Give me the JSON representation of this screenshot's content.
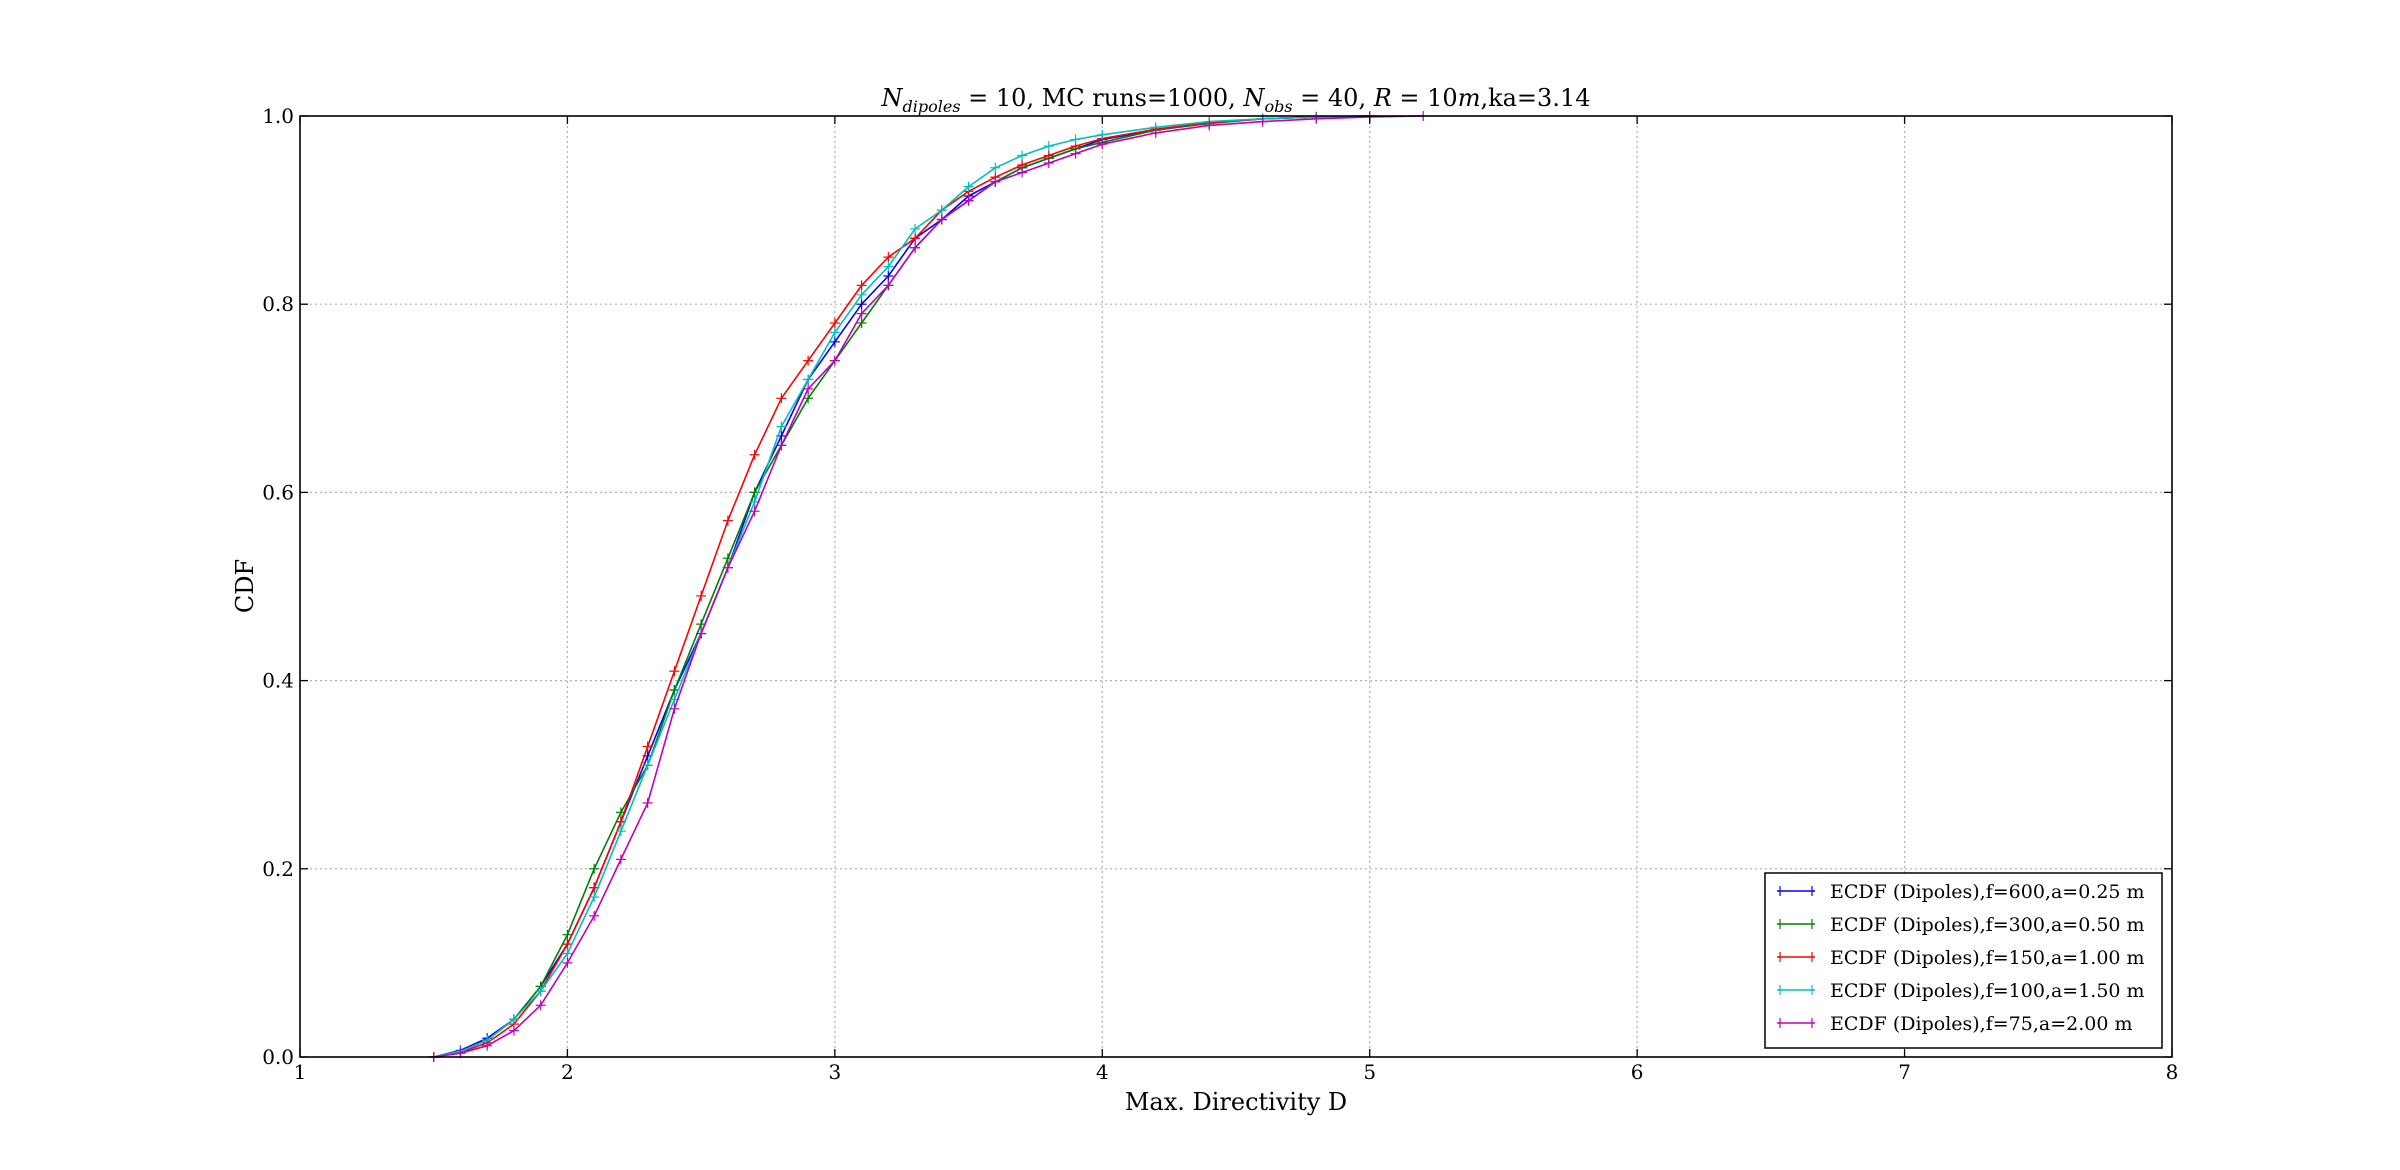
{
  "chart_data": {
    "type": "line",
    "title": {
      "sym": "N",
      "sub": "dipoles",
      "p1": " = 10, MC runs=1000, ",
      "sym2": "N",
      "sub2": "obs",
      "p2": " = 40, ",
      "sym3": "R",
      "p3": " = 10",
      "sym4": "m",
      "p4": ",ka=3.14"
    },
    "xlabel": "Max. Directivity D",
    "ylabel": "CDF",
    "xlim": [
      1,
      8
    ],
    "ylim": [
      0,
      1
    ],
    "xticks": [
      "1",
      "2",
      "3",
      "4",
      "5",
      "6",
      "7",
      "8"
    ],
    "yticks": [
      "0.0",
      "0.2",
      "0.4",
      "0.6",
      "0.8",
      "1.0"
    ],
    "grid": true,
    "legend_position": "lower-right",
    "series": [
      {
        "name": "ECDF (Dipoles),f=600,a=0.25 m",
        "color": "#0000ff",
        "x": [
          1.5,
          1.6,
          1.7,
          1.8,
          1.9,
          2.0,
          2.1,
          2.2,
          2.3,
          2.4,
          2.5,
          2.6,
          2.7,
          2.8,
          2.9,
          3.0,
          3.1,
          3.2,
          3.3,
          3.4,
          3.5,
          3.6,
          3.7,
          3.8,
          3.9,
          4.0,
          4.2,
          4.4,
          4.6,
          4.8,
          5.0
        ],
        "y": [
          0.0,
          0.007,
          0.02,
          0.04,
          0.075,
          0.12,
          0.18,
          0.25,
          0.32,
          0.39,
          0.45,
          0.52,
          0.6,
          0.66,
          0.72,
          0.76,
          0.8,
          0.83,
          0.87,
          0.89,
          0.915,
          0.93,
          0.945,
          0.955,
          0.965,
          0.975,
          0.985,
          0.993,
          0.997,
          0.999,
          1.0
        ]
      },
      {
        "name": "ECDF (Dipoles),f=300,a=0.50 m",
        "color": "#008000",
        "x": [
          1.5,
          1.6,
          1.7,
          1.8,
          1.9,
          2.0,
          2.1,
          2.2,
          2.3,
          2.4,
          2.5,
          2.6,
          2.7,
          2.8,
          2.9,
          3.0,
          3.1,
          3.2,
          3.3,
          3.4,
          3.5,
          3.6,
          3.7,
          3.8,
          3.9,
          4.0,
          4.2,
          4.4,
          4.6,
          4.8,
          5.0
        ],
        "y": [
          0.0,
          0.006,
          0.018,
          0.04,
          0.075,
          0.13,
          0.2,
          0.26,
          0.31,
          0.39,
          0.46,
          0.53,
          0.6,
          0.65,
          0.7,
          0.74,
          0.78,
          0.82,
          0.86,
          0.89,
          0.91,
          0.93,
          0.945,
          0.955,
          0.965,
          0.972,
          0.985,
          0.992,
          0.997,
          0.999,
          1.0
        ]
      },
      {
        "name": "ECDF (Dipoles),f=150,a=1.00 m",
        "color": "#ff0000",
        "x": [
          1.5,
          1.6,
          1.7,
          1.8,
          1.9,
          2.0,
          2.1,
          2.2,
          2.3,
          2.4,
          2.5,
          2.6,
          2.7,
          2.8,
          2.9,
          3.0,
          3.1,
          3.2,
          3.3,
          3.4,
          3.5,
          3.6,
          3.7,
          3.8,
          3.9,
          4.0,
          4.2,
          4.4,
          4.6,
          4.8,
          5.0
        ],
        "y": [
          0.0,
          0.005,
          0.015,
          0.035,
          0.07,
          0.12,
          0.18,
          0.25,
          0.33,
          0.41,
          0.49,
          0.57,
          0.64,
          0.7,
          0.74,
          0.78,
          0.82,
          0.85,
          0.87,
          0.9,
          0.92,
          0.935,
          0.948,
          0.958,
          0.968,
          0.976,
          0.986,
          0.993,
          0.997,
          0.999,
          1.0
        ]
      },
      {
        "name": "ECDF (Dipoles),f=100,a=1.50 m",
        "color": "#00bfbf",
        "x": [
          1.5,
          1.6,
          1.7,
          1.8,
          1.9,
          2.0,
          2.1,
          2.2,
          2.3,
          2.4,
          2.5,
          2.6,
          2.7,
          2.8,
          2.9,
          3.0,
          3.1,
          3.2,
          3.3,
          3.4,
          3.5,
          3.6,
          3.7,
          3.8,
          3.9,
          4.0,
          4.2,
          4.4,
          4.6,
          4.8,
          5.0
        ],
        "y": [
          0.0,
          0.006,
          0.018,
          0.04,
          0.07,
          0.11,
          0.17,
          0.24,
          0.31,
          0.38,
          0.45,
          0.52,
          0.59,
          0.67,
          0.72,
          0.77,
          0.81,
          0.84,
          0.88,
          0.9,
          0.925,
          0.945,
          0.958,
          0.968,
          0.975,
          0.98,
          0.988,
          0.994,
          0.997,
          0.999,
          1.0
        ]
      },
      {
        "name": "ECDF (Dipoles),f=75,a=2.00 m",
        "color": "#bf00bf",
        "x": [
          1.5,
          1.6,
          1.7,
          1.8,
          1.9,
          2.0,
          2.1,
          2.2,
          2.3,
          2.4,
          2.5,
          2.6,
          2.7,
          2.8,
          2.9,
          3.0,
          3.1,
          3.2,
          3.3,
          3.4,
          3.5,
          3.6,
          3.7,
          3.8,
          3.9,
          4.0,
          4.2,
          4.4,
          4.6,
          4.8,
          5.0,
          5.2
        ],
        "y": [
          0.0,
          0.004,
          0.012,
          0.028,
          0.055,
          0.1,
          0.15,
          0.21,
          0.27,
          0.37,
          0.45,
          0.52,
          0.58,
          0.65,
          0.71,
          0.74,
          0.79,
          0.82,
          0.86,
          0.89,
          0.91,
          0.93,
          0.94,
          0.95,
          0.96,
          0.97,
          0.982,
          0.99,
          0.994,
          0.997,
          0.999,
          1.0
        ]
      }
    ]
  }
}
